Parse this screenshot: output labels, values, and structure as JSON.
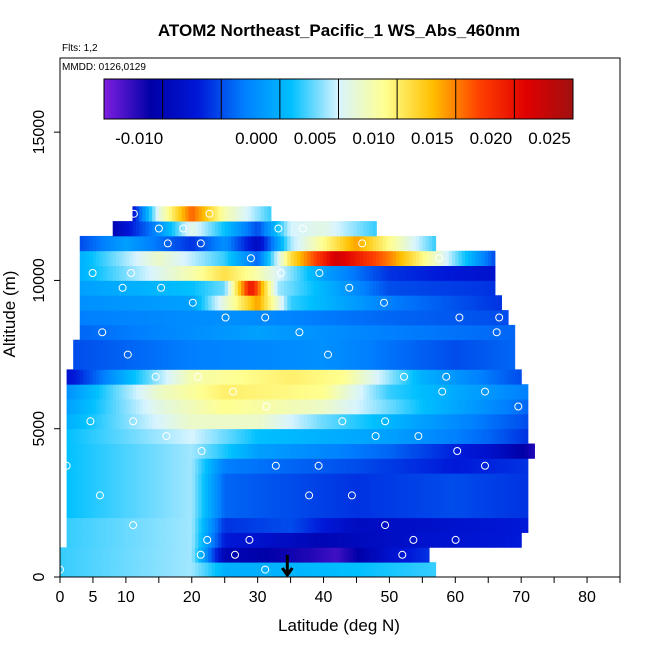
{
  "chart_data": {
    "type": "heatmap",
    "title": "ATOM2 Northeast_Pacific_1 WS_Abs_460nm",
    "flights_label": "Flts: 1,2",
    "dates_label": "MMDD: 0126,0129",
    "xlabel": "Latitude (deg N)",
    "ylabel": "Altitude (m)",
    "xlim": [
      0,
      85
    ],
    "ylim": [
      0,
      17500
    ],
    "x_ticks": [
      0,
      5,
      10,
      20,
      30,
      40,
      50,
      60,
      70,
      80
    ],
    "y_ticks": [
      0,
      5000,
      10000,
      15000
    ],
    "colorbar": {
      "range": [
        -0.013,
        0.027
      ],
      "ticks": [
        -0.01,
        0.0,
        0.005,
        0.01,
        0.015,
        0.02,
        0.025
      ],
      "tick_labels": [
        "-0.010",
        "0.000",
        "0.005",
        "0.010",
        "0.015",
        "0.020",
        "0.025"
      ],
      "colors": [
        "#7f1fe0",
        "#0000a8",
        "#0018d8",
        "#0080ff",
        "#00c0ff",
        "#d8f4ff",
        "#ffff90",
        "#ffc000",
        "#ff4000",
        "#e00000",
        "#a01010"
      ]
    },
    "layers": [
      {
        "alt": [
          0,
          500
        ],
        "lat": [
          0,
          57
        ],
        "profile": [
          [
            0,
            0.004
          ],
          [
            20,
            0.006
          ],
          [
            25,
            0.002
          ],
          [
            30,
            0.002
          ],
          [
            45,
            0.003
          ],
          [
            57,
            0.004
          ]
        ]
      },
      {
        "alt": [
          500,
          1000
        ],
        "lat": [
          0,
          56
        ],
        "profile": [
          [
            0,
            0.004
          ],
          [
            20,
            0.006
          ],
          [
            25,
            -0.008
          ],
          [
            38,
            -0.01
          ],
          [
            42,
            -0.011
          ],
          [
            50,
            -0.006
          ],
          [
            56,
            -0.004
          ]
        ]
      },
      {
        "alt": [
          1000,
          1500
        ],
        "lat": [
          1,
          70
        ],
        "profile": [
          [
            1,
            0.004
          ],
          [
            20,
            0.006
          ],
          [
            25,
            -0.005
          ],
          [
            40,
            -0.008
          ],
          [
            55,
            -0.006
          ],
          [
            70,
            -0.005
          ]
        ]
      },
      {
        "alt": [
          1500,
          2000
        ],
        "lat": [
          1,
          71
        ],
        "profile": [
          [
            1,
            0.004
          ],
          [
            20,
            0.006
          ],
          [
            25,
            -0.004
          ],
          [
            35,
            -0.003
          ],
          [
            45,
            -0.007
          ],
          [
            60,
            -0.006
          ],
          [
            71,
            -0.005
          ]
        ]
      },
      {
        "alt": [
          2000,
          3500
        ],
        "lat": [
          1,
          71
        ],
        "profile": [
          [
            1,
            0.003
          ],
          [
            20,
            0.006
          ],
          [
            25,
            -0.002
          ],
          [
            45,
            -0.004
          ],
          [
            60,
            -0.003
          ],
          [
            71,
            -0.004
          ]
        ]
      },
      {
        "alt": [
          3500,
          4000
        ],
        "lat": [
          1,
          71
        ],
        "profile": [
          [
            1,
            0.003
          ],
          [
            20,
            0.006
          ],
          [
            25,
            -0.001
          ],
          [
            45,
            -0.003
          ],
          [
            60,
            -0.005
          ],
          [
            71,
            -0.004
          ]
        ]
      },
      {
        "alt": [
          4000,
          4500
        ],
        "lat": [
          1,
          72
        ],
        "profile": [
          [
            1,
            0.003
          ],
          [
            20,
            0.006
          ],
          [
            30,
            0.001
          ],
          [
            50,
            -0.002
          ],
          [
            65,
            -0.006
          ],
          [
            72,
            -0.01
          ]
        ]
      },
      {
        "alt": [
          4500,
          5000
        ],
        "lat": [
          1,
          71
        ],
        "profile": [
          [
            1,
            0.003
          ],
          [
            20,
            0.007
          ],
          [
            30,
            0.003
          ],
          [
            50,
            0.001
          ],
          [
            65,
            -0.002
          ],
          [
            71,
            -0.004
          ]
        ]
      },
      {
        "alt": [
          5000,
          5500
        ],
        "lat": [
          1,
          71
        ],
        "profile": [
          [
            1,
            0.002
          ],
          [
            20,
            0.009
          ],
          [
            30,
            0.009
          ],
          [
            40,
            0.005
          ],
          [
            55,
            0.001
          ],
          [
            71,
            -0.003
          ]
        ]
      },
      {
        "alt": [
          5500,
          6000
        ],
        "lat": [
          1,
          71
        ],
        "profile": [
          [
            1,
            0.001
          ],
          [
            15,
            0.008
          ],
          [
            25,
            0.011
          ],
          [
            40,
            0.009
          ],
          [
            55,
            0.003
          ],
          [
            71,
            -0.002
          ]
        ]
      },
      {
        "alt": [
          6000,
          6500
        ],
        "lat": [
          1,
          71
        ],
        "profile": [
          [
            1,
            0.0
          ],
          [
            15,
            0.009
          ],
          [
            25,
            0.012
          ],
          [
            40,
            0.011
          ],
          [
            50,
            0.004
          ],
          [
            71,
            -0.001
          ]
        ]
      },
      {
        "alt": [
          6500,
          7000
        ],
        "lat": [
          1,
          70
        ],
        "profile": [
          [
            1,
            -0.006
          ],
          [
            10,
            0.002
          ],
          [
            20,
            0.01
          ],
          [
            35,
            0.012
          ],
          [
            43,
            0.011
          ],
          [
            55,
            0.002
          ],
          [
            70,
            -0.003
          ]
        ]
      },
      {
        "alt": [
          7000,
          8000
        ],
        "lat": [
          2,
          69
        ],
        "profile": [
          [
            2,
            -0.003
          ],
          [
            20,
            -0.001
          ],
          [
            40,
            0.0
          ],
          [
            60,
            -0.003
          ],
          [
            69,
            -0.002
          ]
        ]
      },
      {
        "alt": [
          8000,
          8500
        ],
        "lat": [
          3,
          69
        ],
        "profile": [
          [
            3,
            -0.002
          ],
          [
            30,
            0.001
          ],
          [
            50,
            -0.001
          ],
          [
            69,
            -0.002
          ]
        ]
      },
      {
        "alt": [
          8500,
          9000
        ],
        "lat": [
          3,
          68
        ],
        "profile": [
          [
            3,
            -0.001
          ],
          [
            25,
            0.0
          ],
          [
            50,
            -0.002
          ],
          [
            68,
            -0.003
          ]
        ]
      },
      {
        "alt": [
          9000,
          9500
        ],
        "lat": [
          3,
          67
        ],
        "profile": [
          [
            3,
            0.0
          ],
          [
            20,
            0.001
          ],
          [
            30,
            0.016
          ],
          [
            35,
            0.004
          ],
          [
            50,
            -0.001
          ],
          [
            67,
            -0.004
          ]
        ]
      },
      {
        "alt": [
          9500,
          10000
        ],
        "lat": [
          3,
          66
        ],
        "profile": [
          [
            3,
            0.001
          ],
          [
            20,
            0.003
          ],
          [
            25,
            0.005
          ],
          [
            29,
            0.022
          ],
          [
            33,
            0.006
          ],
          [
            50,
            -0.003
          ],
          [
            66,
            -0.004
          ]
        ]
      },
      {
        "alt": [
          10000,
          10500
        ],
        "lat": [
          3,
          66
        ],
        "profile": [
          [
            3,
            0.002
          ],
          [
            20,
            0.01
          ],
          [
            25,
            0.013
          ],
          [
            30,
            0.01
          ],
          [
            40,
            0.001
          ],
          [
            50,
            -0.004
          ],
          [
            66,
            -0.006
          ]
        ]
      },
      {
        "alt": [
          10500,
          11000
        ],
        "lat": [
          3,
          66
        ],
        "profile": [
          [
            3,
            0.002
          ],
          [
            15,
            0.009
          ],
          [
            25,
            0.004
          ],
          [
            30,
            -0.002
          ],
          [
            35,
            0.013
          ],
          [
            42,
            0.024
          ],
          [
            50,
            0.017
          ],
          [
            58,
            0.008
          ],
          [
            66,
            -0.003
          ]
        ]
      },
      {
        "alt": [
          11000,
          11500
        ],
        "lat": [
          3,
          57
        ],
        "profile": [
          [
            3,
            -0.003
          ],
          [
            10,
            0.001
          ],
          [
            20,
            -0.004
          ],
          [
            25,
            0.0
          ],
          [
            30,
            -0.007
          ],
          [
            35,
            0.006
          ],
          [
            45,
            0.016
          ],
          [
            57,
            0.004
          ]
        ]
      },
      {
        "alt": [
          11500,
          12000
        ],
        "lat": [
          8,
          48
        ],
        "profile": [
          [
            8,
            -0.008
          ],
          [
            15,
            0.0
          ],
          [
            20,
            0.008
          ],
          [
            25,
            0.003
          ],
          [
            30,
            -0.003
          ],
          [
            35,
            0.007
          ],
          [
            40,
            0.008
          ],
          [
            48,
            0.004
          ]
        ]
      },
      {
        "alt": [
          12000,
          12500
        ],
        "lat": [
          11,
          32
        ],
        "profile": [
          [
            11,
            -0.006
          ],
          [
            15,
            0.008
          ],
          [
            20,
            0.018
          ],
          [
            25,
            0.01
          ],
          [
            32,
            0.004
          ]
        ]
      }
    ],
    "annotations": {
      "arrow_lat": 34.5
    }
  }
}
